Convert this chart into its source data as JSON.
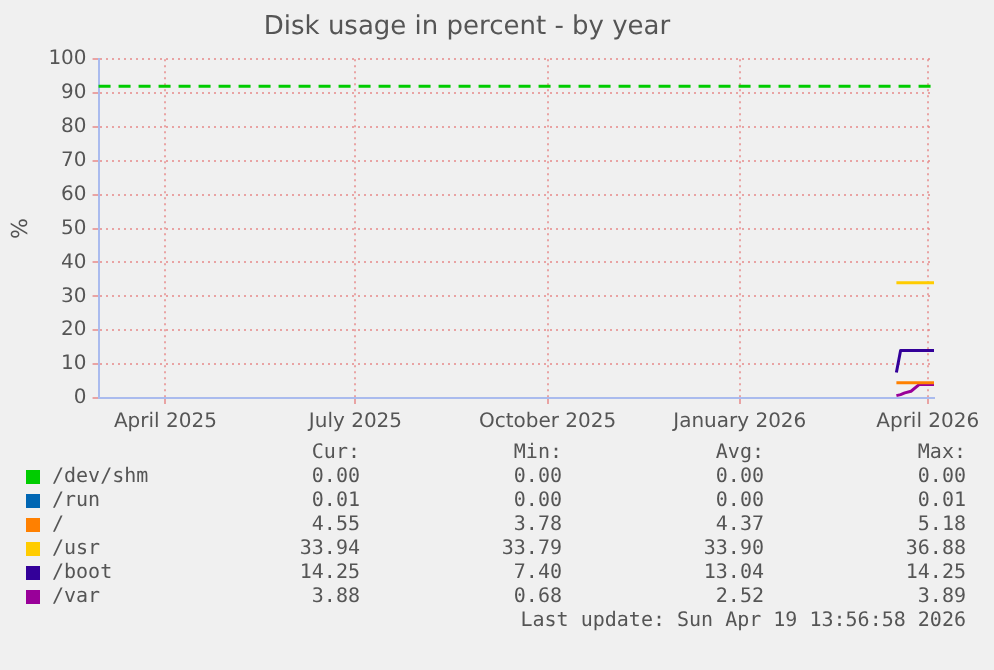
{
  "chart_data": {
    "type": "line",
    "title": "Disk usage in percent - by year",
    "ylabel": "%",
    "x": [
      "2026-04-01",
      "2026-04-03",
      "2026-04-05",
      "2026-04-08",
      "2026-04-12",
      "2026-04-19"
    ],
    "series": [
      {
        "name": "/dev/shm",
        "color": "#00cc00",
        "values": [
          null,
          null,
          null,
          null,
          null,
          null
        ]
      },
      {
        "name": "/run",
        "color": "#0066b3",
        "values": [
          null,
          null,
          null,
          null,
          null,
          null
        ]
      },
      {
        "name": "/",
        "color": "#ff8000",
        "values": [
          4.5,
          4.5,
          4.5,
          4.5,
          4.5,
          4.5
        ]
      },
      {
        "name": "/usr",
        "color": "#ffcc00",
        "values": [
          34,
          34,
          34,
          34,
          34,
          34
        ]
      },
      {
        "name": "/boot",
        "color": "#330099",
        "values": [
          7.5,
          14,
          14,
          14,
          14,
          14
        ]
      },
      {
        "name": "/var",
        "color": "#990099",
        "values": [
          0.7,
          1,
          1.5,
          2,
          4,
          4
        ]
      }
    ],
    "xlim": [
      "2025-03-15",
      "2026-04-19"
    ],
    "xticks": [
      {
        "value": "2025-04-16",
        "label": "April 2025"
      },
      {
        "value": "2025-07-16",
        "label": "July 2025"
      },
      {
        "value": "2025-10-16",
        "label": "October 2025"
      },
      {
        "value": "2026-01-16",
        "label": "January 2026"
      },
      {
        "value": "2026-04-16",
        "label": "April 2026"
      }
    ],
    "ylim": [
      0,
      100
    ],
    "yticks": [
      0,
      10,
      20,
      30,
      40,
      50,
      60,
      70,
      80,
      90,
      100
    ],
    "ref_lines": [
      {
        "axis": "y",
        "value": 92,
        "color": "#00cc00",
        "line_style": "dashed"
      }
    ],
    "grid": true,
    "legend": "bottom",
    "marker": "none",
    "line_style": "solid",
    "annotations": [
      "Cur:",
      "Min:",
      "Avg:",
      "Max:",
      "0.00",
      "0.00",
      "0.00",
      "0.00",
      "0.01",
      "0.00",
      "0.00",
      "0.01",
      "4.55",
      "3.78",
      "4.37",
      "5.18",
      "33.94",
      "33.79",
      "33.90",
      "36.88",
      "14.25",
      "7.40",
      "13.04",
      "14.25",
      "3.88",
      "0.68",
      "2.52",
      "3.89",
      "Last update: Sun Apr 19 13:56:58 2026"
    ]
  }
}
